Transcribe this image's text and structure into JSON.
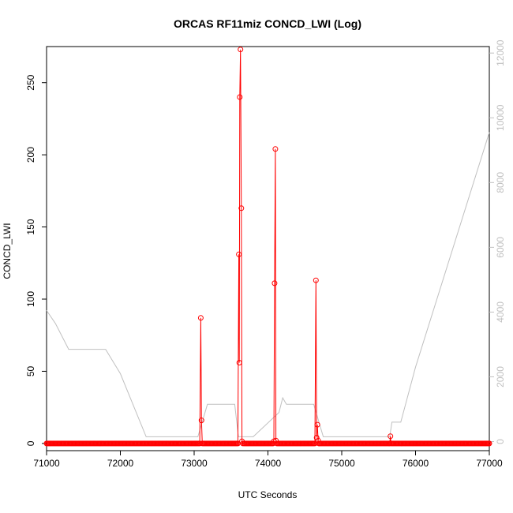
{
  "chart_data": {
    "type": "line",
    "title": "ORCAS RF11miz CONCD_LWI (Log)",
    "xlabel": "UTC Seconds",
    "ylabel": "CONCD_LWI",
    "xlim": [
      71000,
      77000
    ],
    "ylim": [
      -5,
      275
    ],
    "y2lim": [
      -280,
      12200
    ],
    "x_ticks": [
      71000,
      72000,
      73000,
      74000,
      75000,
      76000,
      77000
    ],
    "y_ticks": [
      0,
      50,
      100,
      150,
      200,
      250
    ],
    "y2_ticks": [
      0,
      2000,
      4000,
      6000,
      8000,
      10000,
      12000
    ],
    "grid": false,
    "legend": "none",
    "colors": {
      "concentration": "#ff0000",
      "altitude": "#c0c0c0"
    },
    "series": [
      {
        "axis": "left",
        "style": "line+circles",
        "baseline": {
          "x_start": 71000,
          "x_end": 77000,
          "step": 12,
          "y": 0
        },
        "points": [
          {
            "x": 73080,
            "y": 0
          },
          {
            "x": 73090,
            "y": 87
          },
          {
            "x": 73095,
            "y": 6
          },
          {
            "x": 73100,
            "y": 16
          },
          {
            "x": 73110,
            "y": 0
          },
          {
            "x": 73595,
            "y": 0
          },
          {
            "x": 73605,
            "y": 131
          },
          {
            "x": 73612,
            "y": 56
          },
          {
            "x": 73618,
            "y": 240
          },
          {
            "x": 73628,
            "y": 273
          },
          {
            "x": 73640,
            "y": 163
          },
          {
            "x": 73648,
            "y": 1.5
          },
          {
            "x": 73660,
            "y": 0
          },
          {
            "x": 74070,
            "y": 0
          },
          {
            "x": 74080,
            "y": 1.5
          },
          {
            "x": 74090,
            "y": 111
          },
          {
            "x": 74100,
            "y": 204
          },
          {
            "x": 74108,
            "y": 2
          },
          {
            "x": 74120,
            "y": 0
          },
          {
            "x": 74640,
            "y": 0
          },
          {
            "x": 74650,
            "y": 113
          },
          {
            "x": 74660,
            "y": 4
          },
          {
            "x": 74670,
            "y": 13
          },
          {
            "x": 74680,
            "y": 2
          },
          {
            "x": 74690,
            "y": 0
          },
          {
            "x": 75650,
            "y": 0
          },
          {
            "x": 75660,
            "y": 5
          },
          {
            "x": 75670,
            "y": 0
          }
        ]
      },
      {
        "axis": "right",
        "style": "line",
        "points": [
          {
            "x": 71000,
            "y": 4050
          },
          {
            "x": 71120,
            "y": 3650
          },
          {
            "x": 71300,
            "y": 2850
          },
          {
            "x": 71800,
            "y": 2850
          },
          {
            "x": 72000,
            "y": 2100
          },
          {
            "x": 72350,
            "y": 150
          },
          {
            "x": 72900,
            "y": 150
          },
          {
            "x": 73050,
            "y": 150
          },
          {
            "x": 73180,
            "y": 1150
          },
          {
            "x": 73550,
            "y": 1150
          },
          {
            "x": 73600,
            "y": 150
          },
          {
            "x": 73800,
            "y": 150
          },
          {
            "x": 74150,
            "y": 900
          },
          {
            "x": 74200,
            "y": 1350
          },
          {
            "x": 74250,
            "y": 1150
          },
          {
            "x": 74620,
            "y": 1150
          },
          {
            "x": 74750,
            "y": 150
          },
          {
            "x": 75300,
            "y": 150
          },
          {
            "x": 75650,
            "y": 150
          },
          {
            "x": 75680,
            "y": 600
          },
          {
            "x": 75800,
            "y": 600
          },
          {
            "x": 76000,
            "y": 2300
          },
          {
            "x": 77000,
            "y": 9550
          }
        ]
      }
    ]
  }
}
